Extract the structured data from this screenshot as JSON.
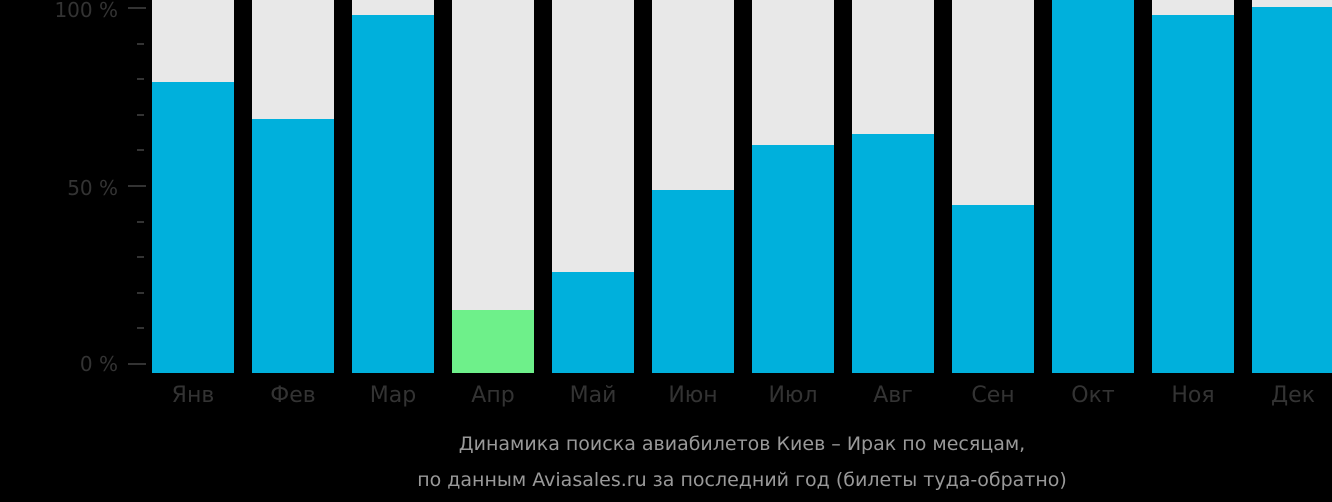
{
  "chart_data": {
    "type": "bar",
    "stacked_to_100": true,
    "title": "Динамика поиска авиабилетов Киев – Ирак по месяцам,",
    "subtitle": "по данным Aviasales.ru за последний год (билеты туда-обратно)",
    "xlabel": "",
    "ylabel": "",
    "ylim": [
      0,
      100
    ],
    "yticks": [
      "0 %",
      "50 %",
      "100 %"
    ],
    "grid": false,
    "legend": null,
    "categories": [
      "Янв",
      "Фев",
      "Мар",
      "Апр",
      "Май",
      "Июн",
      "Июл",
      "Авг",
      "Сен",
      "Окт",
      "Ноя",
      "Дек"
    ],
    "series": [
      {
        "name": "search-share",
        "values": [
          78,
          68,
          96,
          17,
          27,
          49,
          61,
          64,
          45,
          100,
          96,
          98
        ]
      }
    ],
    "highlight": {
      "category": "Апр",
      "note": "minimum month"
    }
  },
  "colors": {
    "background": "#000000",
    "bar": "#00b0dc",
    "bar_highlight": "#6ef08a",
    "bar_track": "#e8e8e8",
    "axis_text": "#333333",
    "caption_text": "#999999"
  },
  "axis": {
    "y_labels": [
      "100 %",
      "50 %",
      "0 %"
    ]
  },
  "caption": {
    "line1": "Динамика поиска авиабилетов Киев – Ирак по месяцам,",
    "line2": "по данным Aviasales.ru за последний год (билеты туда-обратно)"
  }
}
